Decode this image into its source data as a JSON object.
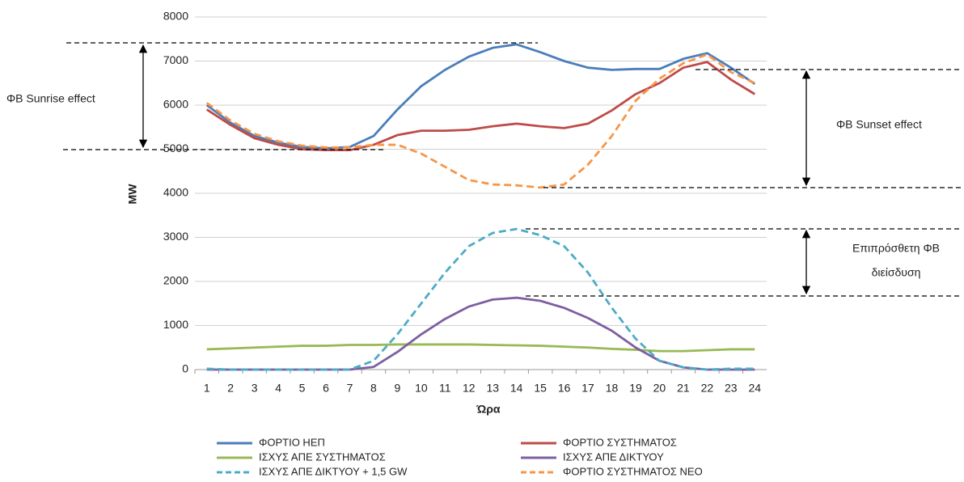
{
  "chart_data": {
    "type": "line",
    "x_label": "Ώρα",
    "y_label": "MW",
    "categories": [
      1,
      2,
      3,
      4,
      5,
      6,
      7,
      8,
      9,
      10,
      11,
      12,
      13,
      14,
      15,
      16,
      17,
      18,
      19,
      20,
      21,
      22,
      23,
      24
    ],
    "ylim": [
      0,
      8000
    ],
    "yticks": [
      0,
      1000,
      2000,
      3000,
      4000,
      5000,
      6000,
      7000,
      8000
    ],
    "grid": true,
    "series": [
      {
        "name": "ΦΟΡΤΙΟ ΗΕΠ",
        "color": "#4a7ebb",
        "dashed": false,
        "values": [
          6000,
          5600,
          5300,
          5150,
          5050,
          5020,
          5050,
          5300,
          5900,
          6430,
          6800,
          7100,
          7300,
          7380,
          7200,
          7000,
          6850,
          6800,
          6820,
          6820,
          7050,
          7180,
          6850,
          6480
        ]
      },
      {
        "name": "ΦΟΡΤΙΟ ΣΥΣΤΗΜΑΤΟΣ",
        "color": "#be4b48",
        "dashed": false,
        "values": [
          5900,
          5550,
          5250,
          5100,
          5000,
          4980,
          4980,
          5100,
          5320,
          5420,
          5420,
          5440,
          5520,
          5580,
          5520,
          5480,
          5580,
          5880,
          6250,
          6500,
          6850,
          6980,
          6580,
          6250
        ]
      },
      {
        "name": "ΙΣΧΥΣ ΑΠΕ ΣΥΣΤΗΜΑΤΟΣ",
        "color": "#98b954",
        "dashed": false,
        "values": [
          460,
          480,
          500,
          520,
          540,
          540,
          560,
          560,
          570,
          570,
          570,
          570,
          560,
          550,
          540,
          520,
          500,
          470,
          450,
          420,
          420,
          440,
          460,
          460
        ]
      },
      {
        "name": "ΙΣΧΥΣ ΑΠΕ ΔΙΚΤΥΟΥ",
        "color": "#7d5fa0",
        "dashed": false,
        "values": [
          0,
          0,
          0,
          0,
          0,
          0,
          0,
          60,
          400,
          800,
          1150,
          1430,
          1590,
          1630,
          1560,
          1400,
          1170,
          880,
          500,
          200,
          50,
          0,
          0,
          0
        ]
      },
      {
        "name": "ΙΣΧΥΣ ΑΠΕ ΔΙΚΤΥΟΥ + 1,5 GW",
        "color": "#4bacc6",
        "dashed": true,
        "values": [
          20,
          0,
          0,
          0,
          0,
          0,
          0,
          200,
          800,
          1500,
          2200,
          2800,
          3100,
          3190,
          3050,
          2800,
          2200,
          1400,
          700,
          200,
          50,
          0,
          20,
          20
        ]
      },
      {
        "name": "ΦΟΡΤΙΟ ΣΥΣΤΗΜΑΤΟΣ ΝΕΟ",
        "color": "#f79646",
        "dashed": true,
        "values": [
          6050,
          5650,
          5350,
          5180,
          5080,
          5040,
          5040,
          5100,
          5100,
          4900,
          4600,
          4300,
          4200,
          4180,
          4130,
          4200,
          4650,
          5300,
          6100,
          6600,
          6950,
          7150,
          6750,
          6500
        ]
      }
    ],
    "annotations": [
      "ΦΒ Sunrise effect",
      "ΦΒ Sunset effect",
      "Επιπρόσθετη ΦΒ",
      "διείσδυση"
    ]
  }
}
